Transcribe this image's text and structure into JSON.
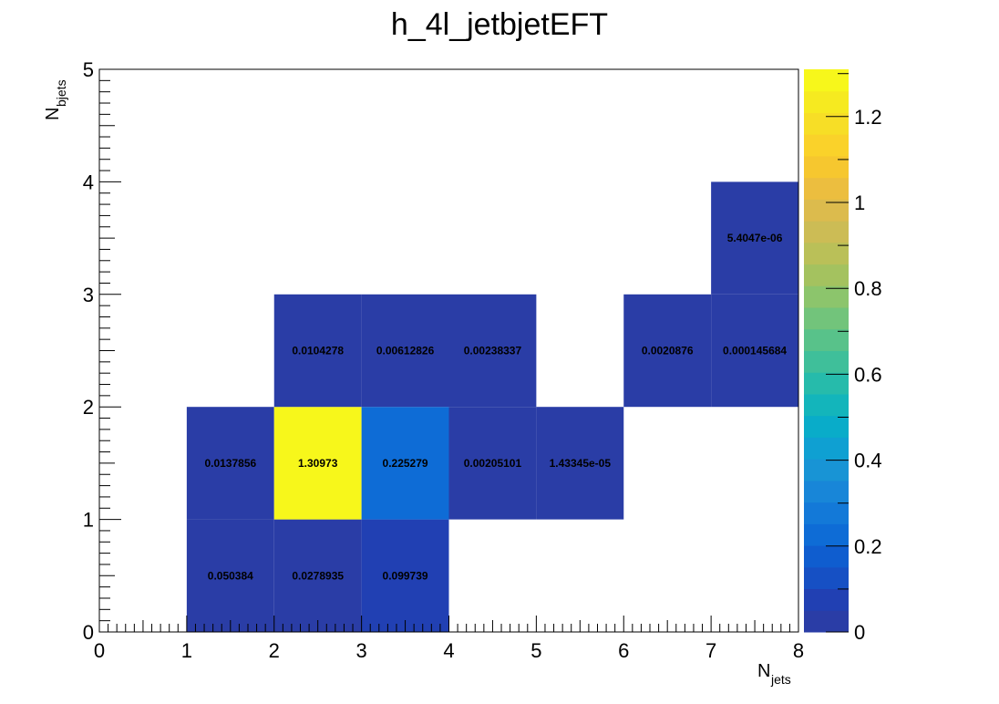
{
  "chart_data": {
    "type": "heatmap",
    "title": "h_4l_jetbjetEFT",
    "xlabel": "N",
    "xlabel_sub": "jets",
    "ylabel": "N",
    "ylabel_sub": "bjets",
    "xlim": [
      0,
      8
    ],
    "ylim": [
      0,
      5
    ],
    "x_ticks": [
      "0",
      "1",
      "2",
      "3",
      "4",
      "5",
      "6",
      "7",
      "8"
    ],
    "y_ticks": [
      "0",
      "1",
      "2",
      "3",
      "4",
      "5"
    ],
    "z_range": [
      0,
      1.31
    ],
    "z_ticks": [
      "0",
      "0.2",
      "0.4",
      "0.6",
      "0.8",
      "1",
      "1.2"
    ],
    "z_tick_values": [
      0,
      0.2,
      0.4,
      0.6,
      0.8,
      1.0,
      1.2
    ],
    "palette": [
      "#2a3da6",
      "#2140b3",
      "#1650c4",
      "#0f5dcf",
      "#0e6cd6",
      "#1379d8",
      "#1886d8",
      "#1894d5",
      "#0fa0d2",
      "#09acc9",
      "#13b5bb",
      "#26bbab",
      "#3fbf9a",
      "#58c28a",
      "#72c47b",
      "#8cc56c",
      "#a4c25f",
      "#bac058",
      "#ccbc55",
      "#dcbb4d",
      "#ecbe3f",
      "#f6c72f",
      "#fad22a",
      "#f7de26",
      "#f6ea20",
      "#f7f71b"
    ],
    "cells": [
      {
        "x": 1,
        "y": 0,
        "value": 0.050384,
        "label": "0.050384"
      },
      {
        "x": 2,
        "y": 0,
        "value": 0.0278935,
        "label": "0.0278935"
      },
      {
        "x": 3,
        "y": 0,
        "value": 0.099739,
        "label": "0.099739"
      },
      {
        "x": 1,
        "y": 1,
        "value": 0.0137856,
        "label": "0.0137856"
      },
      {
        "x": 2,
        "y": 1,
        "value": 1.30973,
        "label": "1.30973"
      },
      {
        "x": 3,
        "y": 1,
        "value": 0.225279,
        "label": "0.225279"
      },
      {
        "x": 4,
        "y": 1,
        "value": 0.00205101,
        "label": "0.00205101"
      },
      {
        "x": 5,
        "y": 1,
        "value": 1.43345e-05,
        "label": "1.43345e-05"
      },
      {
        "x": 2,
        "y": 2,
        "value": 0.0104278,
        "label": "0.0104278"
      },
      {
        "x": 3,
        "y": 2,
        "value": 0.00612826,
        "label": "0.00612826"
      },
      {
        "x": 4,
        "y": 2,
        "value": 0.00238337,
        "label": "0.00238337"
      },
      {
        "x": 6,
        "y": 2,
        "value": 0.0020876,
        "label": "0.0020876"
      },
      {
        "x": 7,
        "y": 2,
        "value": 0.000145684,
        "label": "0.000145684"
      },
      {
        "x": 7,
        "y": 3,
        "value": 5.4047e-06,
        "label": "5.4047e-06"
      }
    ]
  }
}
